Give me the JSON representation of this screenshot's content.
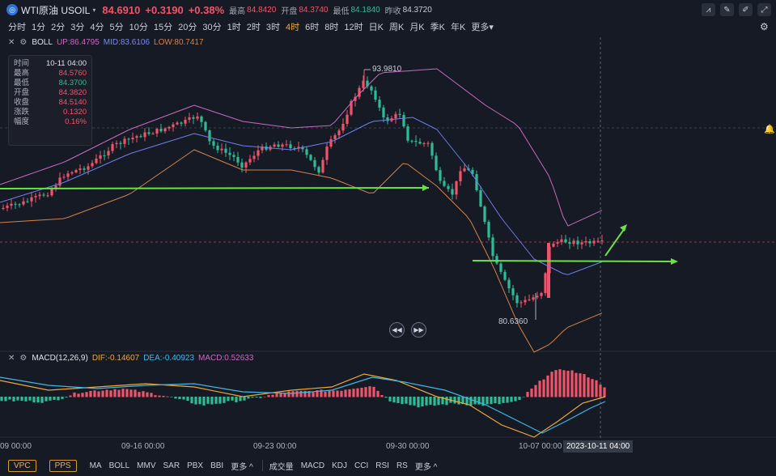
{
  "header": {
    "logo_glyph": "◎",
    "symbol": "WTI原油 USOIL",
    "caret": "▾",
    "price": "84.6910",
    "change": "+0.3190",
    "change_pct": "+0.38%",
    "high_label": "最高",
    "high": "84.8420",
    "open_label": "开盘",
    "open": "84.3740",
    "low_label": "最低",
    "low": "84.1840",
    "prev_label": "昨收",
    "prev": "84.3720"
  },
  "toolbar_icons": [
    "line-chart-icon",
    "pen-icon",
    "draw-icon",
    "fullscreen-icon"
  ],
  "toolbar_glyphs": [
    "⩘",
    "✎",
    "✐",
    "⤢"
  ],
  "periods": [
    "分时",
    "1分",
    "2分",
    "3分",
    "4分",
    "5分",
    "10分",
    "15分",
    "20分",
    "30分",
    "1时",
    "2时",
    "3时",
    "4时",
    "6时",
    "8时",
    "12时",
    "日K",
    "周K",
    "月K",
    "季K",
    "年K",
    "更多▾"
  ],
  "active_period": "4时",
  "boll": {
    "name": "BOLL",
    "up": "UP:86.4795",
    "mid": "MID:83.6106",
    "low": "LOW:80.7417"
  },
  "info_box": [
    {
      "k": "时间",
      "v": "10-11 04:00",
      "c": "#e0e3ea"
    },
    {
      "k": "最高",
      "v": "84.5760",
      "c": "#f0546a"
    },
    {
      "k": "最低",
      "v": "84.3700",
      "c": "#2dbd96"
    },
    {
      "k": "开盘",
      "v": "84.3820",
      "c": "#f0546a"
    },
    {
      "k": "收盘",
      "v": "84.5140",
      "c": "#f0546a"
    },
    {
      "k": "涨跌",
      "v": "0.1320",
      "c": "#f0546a"
    },
    {
      "k": "幅度",
      "v": "0.16%",
      "c": "#f0546a"
    }
  ],
  "chart_marks": {
    "high_mark": "93.9810",
    "low_mark": "80.6360"
  },
  "macd": {
    "name": "MACD(12,26,9)",
    "dif": "DIF:-0.14607",
    "dea": "DEA:-0.40923",
    "macd": "MACD:0.52633"
  },
  "x_axis": [
    "09 00:00",
    "09-16 00:00",
    "09-23 00:00",
    "09-30 00:00",
    "10-07 00:00"
  ],
  "x_axis_current": "2023-10-11 04:00",
  "bottom_boxes": [
    "VPC",
    "PPS"
  ],
  "bottom_main": [
    "MA",
    "BOLL",
    "MMV",
    "SAR",
    "PBX",
    "BBI",
    "更多 ^"
  ],
  "bottom_sub": [
    "成交量",
    "MACD",
    "KDJ",
    "CCI",
    "RSI",
    "RS",
    "更多 ^"
  ],
  "colors": {
    "up": "#f0546a",
    "down": "#2dbd96",
    "boll_up": "#c86ac0",
    "boll_mid": "#6c7ee8",
    "boll_low": "#d0844a",
    "dif": "#f0a830",
    "dea": "#3ab8e8",
    "trend": "#6ce048"
  }
}
